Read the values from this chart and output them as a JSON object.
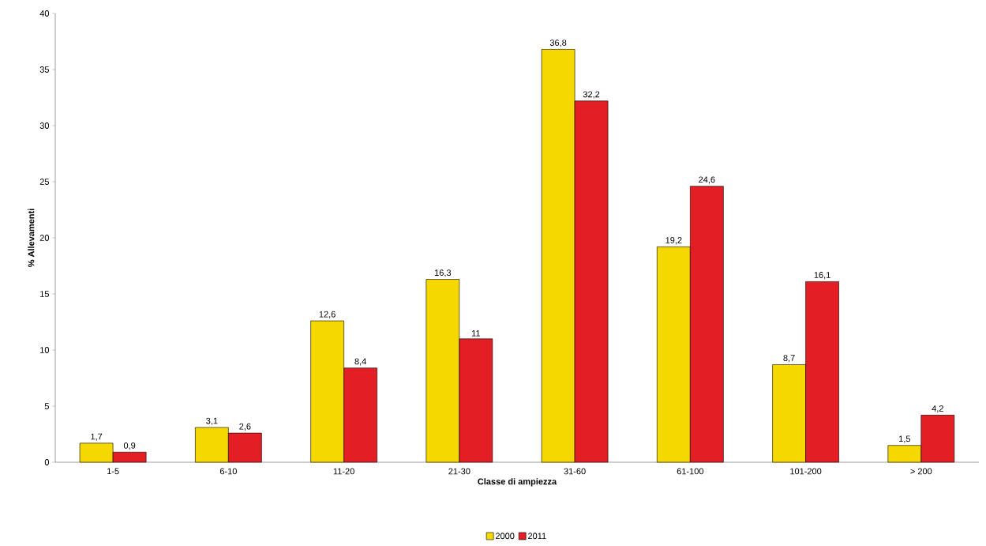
{
  "chart_data": {
    "type": "bar",
    "xlabel": "Classe di ampiezza",
    "ylabel": "% Allevamenti",
    "categories": [
      "1-5",
      "6-10",
      "11-20",
      "21-30",
      "31-60",
      "61-100",
      "101-200",
      "> 200"
    ],
    "series": [
      {
        "name": "2000",
        "color": "#f5d800",
        "values": [
          1.7,
          3.1,
          12.6,
          16.3,
          36.8,
          19.2,
          8.7,
          1.5
        ],
        "value_labels": [
          "1,7",
          "3,1",
          "12,6",
          "16,3",
          "36,8",
          "19,2",
          "8,7",
          "1,5"
        ]
      },
      {
        "name": "2011",
        "color": "#e31e24",
        "values": [
          0.9,
          2.6,
          8.4,
          11,
          32.2,
          24.6,
          16.1,
          4.2
        ],
        "value_labels": [
          "0,9",
          "2,6",
          "8,4",
          "11",
          "32,2",
          "24,6",
          "16,1",
          "4,2"
        ]
      }
    ],
    "ylim": [
      0,
      40
    ],
    "yticks": [
      0,
      5,
      10,
      15,
      20,
      25,
      30,
      35,
      40
    ],
    "grid": false,
    "legend": "bottom"
  }
}
